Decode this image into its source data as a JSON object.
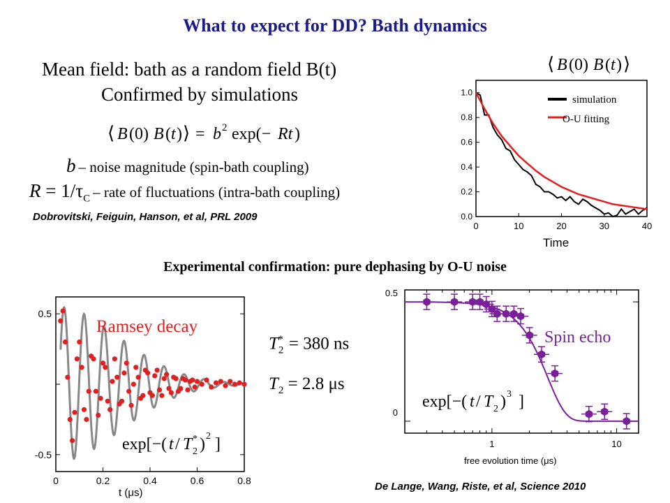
{
  "slide": {
    "title": "What to expect for DD? Bath dynamics",
    "mean_field_line": "Mean field: bath as a random field B(t)",
    "confirmed_line": "Confirmed by simulations",
    "b_label": "b",
    "b_desc": "– noise magnitude (spin-bath coupling)",
    "R_desc": "– rate of fluctuations (intra-bath coupling)",
    "citation_top": "Dobrovitski, Feiguin, Hanson, et al, PRL 2009",
    "experimental_header": "Experimental confirmation: pure dephasing by O-U noise",
    "citation_bottom": "De Lange, Wang, Riste, et al, Science 2010",
    "t2star_value": "= 380 ns",
    "t2_value": "= 2.8 μs",
    "colors": {
      "title": "#1a1a8c",
      "red": "#e02020",
      "purple": "#7a1f9a"
    }
  },
  "chart_data": [
    {
      "type": "line",
      "title": "⟨B(0) B(t)⟩",
      "xlabel": "Time",
      "ylabel": "",
      "xlim": [
        0,
        40
      ],
      "ylim": [
        0,
        1.1
      ],
      "xticks": [
        "0",
        "10",
        "20",
        "30",
        "40"
      ],
      "yticks": [
        "0.0",
        "0.2",
        "0.4",
        "0.6",
        "0.8",
        "1.0"
      ],
      "legend": {
        "placement": "top-right",
        "entries": [
          "simulation",
          "O-U fitting"
        ]
      },
      "series": [
        {
          "name": "simulation",
          "color": "#000000",
          "x": [
            0,
            1,
            2,
            3,
            4,
            5,
            6,
            7,
            8,
            9,
            10,
            11,
            12,
            13,
            14,
            15,
            16,
            17,
            18,
            19,
            20,
            21,
            22,
            23,
            24,
            25,
            26,
            27,
            28,
            29,
            30,
            31,
            32,
            33,
            34,
            35,
            36,
            37,
            38,
            39,
            40
          ],
          "y": [
            1.0,
            0.98,
            0.82,
            0.82,
            0.72,
            0.66,
            0.62,
            0.55,
            0.53,
            0.46,
            0.42,
            0.38,
            0.36,
            0.33,
            0.26,
            0.24,
            0.2,
            0.2,
            0.18,
            0.15,
            0.16,
            0.13,
            0.16,
            0.12,
            0.1,
            0.14,
            0.12,
            0.09,
            0.07,
            0.05,
            0.02,
            0.03,
            0.0,
            0.01,
            0.06,
            0.02,
            0.04,
            0.06,
            0.02,
            0.05,
            0.07
          ]
        },
        {
          "name": "O-U fitting",
          "color": "#e02020",
          "x": [
            0,
            2,
            4,
            6,
            8,
            10,
            12,
            14,
            16,
            18,
            20,
            22,
            24,
            26,
            28,
            30,
            32,
            34,
            36,
            38,
            40
          ],
          "y": [
            1.0,
            0.87,
            0.75,
            0.65,
            0.57,
            0.49,
            0.43,
            0.37,
            0.32,
            0.28,
            0.24,
            0.21,
            0.18,
            0.16,
            0.14,
            0.12,
            0.1,
            0.09,
            0.08,
            0.07,
            0.06
          ]
        }
      ]
    },
    {
      "type": "scatter",
      "title": "Ramsey decay",
      "xlabel": "t (μs)",
      "ylabel": "",
      "xlim": [
        0,
        0.8
      ],
      "ylim": [
        -0.62,
        0.62
      ],
      "xticks": [
        "0",
        "0.2",
        "0.4",
        "0.6",
        "0.8"
      ],
      "yticks": [
        "-0.5",
        "0.5"
      ],
      "series": [
        {
          "name": "data",
          "color": "#e02020",
          "x": [
            0.02,
            0.03,
            0.04,
            0.05,
            0.06,
            0.07,
            0.08,
            0.09,
            0.1,
            0.11,
            0.12,
            0.13,
            0.14,
            0.15,
            0.16,
            0.17,
            0.18,
            0.19,
            0.2,
            0.21,
            0.22,
            0.23,
            0.24,
            0.25,
            0.26,
            0.27,
            0.28,
            0.29,
            0.3,
            0.31,
            0.32,
            0.33,
            0.34,
            0.35,
            0.36,
            0.37,
            0.38,
            0.39,
            0.4,
            0.41,
            0.42,
            0.43,
            0.44,
            0.45,
            0.46,
            0.47,
            0.48,
            0.49,
            0.5,
            0.51,
            0.52,
            0.53,
            0.54,
            0.55,
            0.56,
            0.57,
            0.58,
            0.59,
            0.6,
            0.62,
            0.64,
            0.66,
            0.68,
            0.7,
            0.72,
            0.74,
            0.76,
            0.78,
            0.8
          ],
          "y": [
            0.45,
            0.52,
            0.3,
            0.05,
            -0.25,
            -0.4,
            -0.2,
            0.18,
            0.3,
            0.12,
            -0.18,
            -0.25,
            -0.05,
            0.2,
            0.18,
            -0.05,
            -0.22,
            -0.1,
            0.15,
            0.12,
            -0.12,
            -0.18,
            0.02,
            0.18,
            0.05,
            -0.14,
            -0.12,
            0.08,
            0.15,
            -0.05,
            -0.15,
            0.0,
            0.12,
            0.05,
            -0.1,
            -0.08,
            0.1,
            0.08,
            -0.06,
            -0.08,
            0.06,
            0.1,
            -0.04,
            -0.08,
            0.04,
            0.07,
            -0.03,
            -0.06,
            0.05,
            0.04,
            -0.05,
            -0.03,
            0.04,
            0.03,
            -0.04,
            0.02,
            0.03,
            -0.02,
            0.02,
            0.0,
            0.03,
            -0.02,
            0.01,
            0.02,
            -0.01,
            0.02,
            0.0,
            0.01,
            0.0
          ]
        }
      ]
    },
    {
      "type": "scatter",
      "title": "Spin echo",
      "xlabel": "free evolution time (μs)",
      "ylabel": "",
      "xscale": "log",
      "xlim": [
        0.2,
        15
      ],
      "ylim": [
        -0.05,
        0.55
      ],
      "xticks": [
        "1",
        "10"
      ],
      "yticks": [
        "0",
        "0.5"
      ],
      "series": [
        {
          "name": "data",
          "color": "#7a1f9a",
          "x": [
            0.3,
            0.5,
            0.7,
            0.8,
            0.9,
            1.0,
            1.1,
            1.3,
            1.5,
            1.7,
            2.0,
            2.5,
            3.2,
            6.0,
            8.0,
            12.0
          ],
          "y": [
            0.5,
            0.5,
            0.5,
            0.5,
            0.49,
            0.47,
            0.45,
            0.45,
            0.45,
            0.44,
            0.36,
            0.28,
            0.2,
            0.03,
            0.04,
            0.0
          ]
        },
        {
          "name": "fit",
          "color": "#7a1f9a",
          "x": [
            0.2,
            0.5,
            1.0,
            1.5,
            2.0,
            2.5,
            3.0,
            3.5,
            4.0,
            5.0,
            6.0,
            8.0,
            15.0
          ],
          "y": [
            0.5,
            0.5,
            0.49,
            0.45,
            0.38,
            0.28,
            0.18,
            0.11,
            0.06,
            0.01,
            0.0,
            0.0,
            0.0
          ]
        }
      ]
    }
  ]
}
